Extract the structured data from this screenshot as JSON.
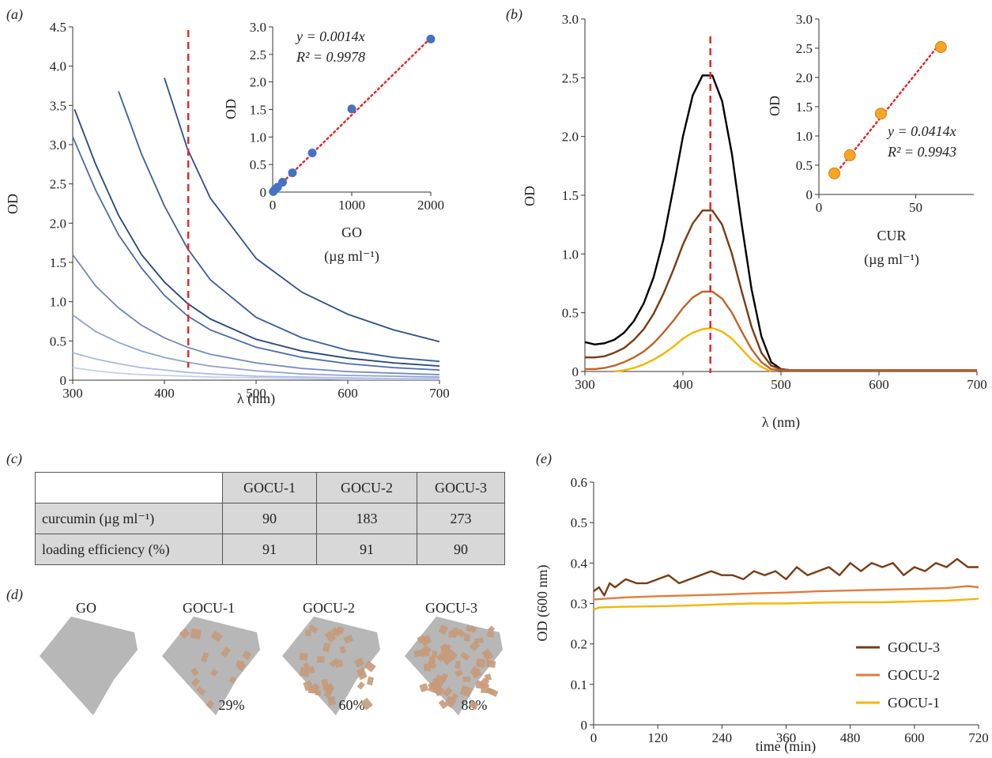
{
  "panels": {
    "a": "(a)",
    "b": "(b)",
    "c": "(c)",
    "d": "(d)",
    "e": "(e)"
  },
  "colors": {
    "red": "#e8282a",
    "blue_dots": "#4472c4",
    "orange_dots": "#f5a623",
    "black": "#000000",
    "dark_brown": "#7b3b13",
    "brown": "#b5521f",
    "orange": "#e37b3a",
    "yellow": "#f7b500",
    "gray_flake": "#b7b7b7",
    "cur_patch": "#c79a7a"
  },
  "chart_data": [
    {
      "id": "a_main",
      "type": "line",
      "xlabel": "λ (nm)",
      "ylabel": "OD",
      "xlim": [
        300,
        700
      ],
      "ylim": [
        0,
        4.5
      ],
      "xticks": [
        300,
        400,
        500,
        600,
        700
      ],
      "yticks": [
        "0",
        "0.5",
        "1.0",
        "1.5",
        "2.0",
        "2.5",
        "3.0",
        "3.5",
        "4.0",
        "4.5"
      ],
      "marker_line_x": 426,
      "series": [
        {
          "color": "#2b4f8e",
          "x": [
            400,
            425,
            450,
            500,
            550,
            600,
            650,
            700
          ],
          "y": [
            3.85,
            2.95,
            2.32,
            1.55,
            1.12,
            0.84,
            0.64,
            0.49
          ]
        },
        {
          "color": "#3a5fa0",
          "x": [
            350,
            375,
            400,
            425,
            450,
            500,
            550,
            600,
            650,
            700
          ],
          "y": [
            3.68,
            2.88,
            2.22,
            1.68,
            1.28,
            0.8,
            0.54,
            0.38,
            0.29,
            0.24
          ]
        },
        {
          "color": "#26457f",
          "x": [
            302,
            325,
            350,
            375,
            400,
            425,
            450,
            500,
            550,
            600,
            650,
            700
          ],
          "y": [
            3.45,
            2.75,
            2.1,
            1.6,
            1.25,
            0.98,
            0.78,
            0.52,
            0.37,
            0.28,
            0.22,
            0.18
          ]
        },
        {
          "color": "#4a6cb0",
          "x": [
            300,
            325,
            350,
            375,
            400,
            425,
            450,
            500,
            550,
            600,
            650,
            700
          ],
          "y": [
            3.1,
            2.42,
            1.85,
            1.43,
            1.08,
            0.82,
            0.64,
            0.42,
            0.29,
            0.21,
            0.16,
            0.13
          ]
        },
        {
          "color": "#6e89c2",
          "x": [
            300,
            325,
            350,
            375,
            400,
            425,
            450,
            500,
            550,
            600,
            650,
            700
          ],
          "y": [
            1.6,
            1.2,
            0.92,
            0.7,
            0.54,
            0.42,
            0.33,
            0.22,
            0.15,
            0.11,
            0.09,
            0.07
          ]
        },
        {
          "color": "#8ea3d1",
          "x": [
            300,
            325,
            350,
            375,
            400,
            425,
            450,
            500,
            550,
            600,
            650,
            700
          ],
          "y": [
            0.83,
            0.62,
            0.48,
            0.37,
            0.29,
            0.23,
            0.18,
            0.12,
            0.08,
            0.06,
            0.05,
            0.04
          ]
        },
        {
          "color": "#a9bbe0",
          "x": [
            300,
            325,
            350,
            375,
            400,
            425,
            450,
            500,
            550,
            600,
            650,
            700
          ],
          "y": [
            0.35,
            0.27,
            0.21,
            0.16,
            0.13,
            0.1,
            0.08,
            0.05,
            0.04,
            0.03,
            0.02,
            0.02
          ]
        },
        {
          "color": "#c4d0ea",
          "x": [
            300,
            325,
            350,
            375,
            400,
            425,
            450,
            500,
            550,
            600,
            650,
            700
          ],
          "y": [
            0.16,
            0.12,
            0.09,
            0.07,
            0.06,
            0.05,
            0.04,
            0.03,
            0.02,
            0.01,
            0.01,
            0.01
          ]
        }
      ]
    },
    {
      "id": "a_inset",
      "type": "scatter",
      "xlabel": "GO",
      "xunit": "(µg ml⁻¹)",
      "ylabel": "OD",
      "xlim": [
        0,
        2000
      ],
      "ylim": [
        0,
        3.0
      ],
      "xticks": [
        0,
        1000,
        2000
      ],
      "yticks": [
        "0",
        "0.5",
        "1.0",
        "1.5",
        "2.0",
        "2.5",
        "3.0"
      ],
      "equation": "y = 0.0014x",
      "r2": "R² = 0.9978",
      "x": [
        8,
        31,
        62,
        125,
        250,
        500,
        1000,
        2000
      ],
      "y": [
        0.01,
        0.05,
        0.09,
        0.18,
        0.35,
        0.71,
        1.51,
        2.78
      ],
      "fit": [
        [
          0,
          0
        ],
        [
          2000,
          2.8
        ]
      ]
    },
    {
      "id": "b_main",
      "type": "line",
      "xlabel": "λ (nm)",
      "ylabel": "OD",
      "xlim": [
        300,
        700
      ],
      "ylim": [
        0,
        3.0
      ],
      "xticks": [
        300,
        400,
        500,
        600,
        700
      ],
      "yticks": [
        "0",
        "0.5",
        "1.0",
        "1.5",
        "2.0",
        "2.5",
        "3.0"
      ],
      "marker_line_x": 428,
      "series": [
        {
          "color": "#000000",
          "x": [
            300,
            310,
            320,
            330,
            340,
            350,
            360,
            370,
            380,
            390,
            400,
            410,
            420,
            430,
            440,
            450,
            460,
            470,
            480,
            490,
            500,
            510,
            550,
            600,
            650,
            700
          ],
          "y": [
            0.25,
            0.23,
            0.24,
            0.27,
            0.33,
            0.43,
            0.58,
            0.8,
            1.12,
            1.55,
            2.0,
            2.35,
            2.52,
            2.52,
            2.3,
            1.85,
            1.25,
            0.7,
            0.3,
            0.08,
            0.02,
            0.01,
            0.01,
            0.01,
            0.01,
            0.01
          ]
        },
        {
          "color": "#7b3b13",
          "x": [
            300,
            310,
            320,
            330,
            340,
            350,
            360,
            370,
            380,
            390,
            400,
            410,
            420,
            430,
            440,
            450,
            460,
            470,
            480,
            490,
            500,
            510,
            550,
            600,
            650,
            700
          ],
          "y": [
            0.12,
            0.12,
            0.13,
            0.16,
            0.2,
            0.27,
            0.36,
            0.49,
            0.66,
            0.86,
            1.08,
            1.26,
            1.37,
            1.37,
            1.25,
            1.0,
            0.68,
            0.38,
            0.16,
            0.05,
            0.02,
            0.01,
            0.01,
            0.01,
            0.01,
            0.01
          ]
        },
        {
          "color": "#c0632a",
          "x": [
            300,
            310,
            320,
            330,
            340,
            350,
            360,
            370,
            380,
            390,
            400,
            410,
            420,
            430,
            440,
            450,
            460,
            470,
            480,
            490,
            500,
            510,
            550,
            600,
            650,
            700
          ],
          "y": [
            0.02,
            0.02,
            0.03,
            0.05,
            0.08,
            0.12,
            0.17,
            0.24,
            0.33,
            0.43,
            0.54,
            0.63,
            0.68,
            0.68,
            0.62,
            0.5,
            0.34,
            0.19,
            0.08,
            0.02,
            0.01,
            0.01,
            0.01,
            0.01,
            0.01,
            0.01
          ]
        },
        {
          "color": "#f7b500",
          "x": [
            330,
            340,
            350,
            360,
            370,
            380,
            390,
            400,
            410,
            420,
            430,
            440,
            450,
            460,
            470,
            480,
            490
          ],
          "y": [
            0.0,
            0.01,
            0.03,
            0.06,
            0.1,
            0.15,
            0.21,
            0.28,
            0.33,
            0.36,
            0.37,
            0.34,
            0.28,
            0.19,
            0.1,
            0.04,
            0.0
          ]
        }
      ]
    },
    {
      "id": "b_inset",
      "type": "scatter",
      "xlabel": "CUR",
      "xunit": "(µg ml⁻¹)",
      "ylabel": "OD",
      "xlim": [
        0,
        80
      ],
      "ylim": [
        0,
        3.0
      ],
      "xticks": [
        0,
        50
      ],
      "yticks": [
        "0",
        "0.5",
        "1.0",
        "1.5",
        "2.0",
        "2.5",
        "3.0"
      ],
      "equation": "y = 0.0414x",
      "r2": "R² = 0.9943",
      "x": [
        8,
        16,
        32,
        63
      ],
      "y": [
        0.36,
        0.67,
        1.38,
        2.52
      ],
      "fit": [
        [
          8,
          0.33
        ],
        [
          63,
          2.6
        ]
      ]
    },
    {
      "id": "e_main",
      "type": "line",
      "xlabel": "time (min)",
      "ylabel": "OD (600 nm)",
      "xlim": [
        0,
        720
      ],
      "ylim": [
        0,
        0.6
      ],
      "xticks": [
        0,
        120,
        240,
        360,
        480,
        600,
        720
      ],
      "yticks": [
        "0",
        "0.1",
        "0.2",
        "0.3",
        "0.4",
        "0.5",
        "0.6"
      ],
      "legend_position": "bottom-right",
      "series": [
        {
          "name": "GOCU-3",
          "color": "#7b3b13",
          "x": [
            0,
            10,
            20,
            30,
            40,
            60,
            80,
            100,
            120,
            140,
            160,
            180,
            200,
            220,
            240,
            260,
            280,
            300,
            320,
            340,
            360,
            380,
            400,
            420,
            440,
            460,
            480,
            500,
            520,
            540,
            560,
            580,
            600,
            620,
            640,
            660,
            680,
            700,
            720
          ],
          "y": [
            0.33,
            0.34,
            0.32,
            0.35,
            0.34,
            0.36,
            0.35,
            0.35,
            0.36,
            0.37,
            0.35,
            0.36,
            0.37,
            0.38,
            0.37,
            0.37,
            0.36,
            0.38,
            0.37,
            0.38,
            0.36,
            0.39,
            0.37,
            0.38,
            0.39,
            0.37,
            0.4,
            0.38,
            0.4,
            0.39,
            0.4,
            0.37,
            0.39,
            0.38,
            0.4,
            0.39,
            0.41,
            0.39,
            0.39
          ]
        },
        {
          "name": "GOCU-2",
          "color": "#e37b3a",
          "x": [
            0,
            60,
            120,
            180,
            240,
            300,
            360,
            420,
            480,
            540,
            600,
            660,
            700,
            720
          ],
          "y": [
            0.31,
            0.315,
            0.318,
            0.32,
            0.322,
            0.325,
            0.327,
            0.33,
            0.332,
            0.334,
            0.336,
            0.338,
            0.343,
            0.34
          ]
        },
        {
          "name": "GOCU-1",
          "color": "#f7b500",
          "x": [
            0,
            10,
            60,
            120,
            180,
            240,
            300,
            360,
            420,
            480,
            540,
            600,
            660,
            700,
            720
          ],
          "y": [
            0.285,
            0.29,
            0.292,
            0.293,
            0.295,
            0.298,
            0.3,
            0.3,
            0.302,
            0.303,
            0.303,
            0.305,
            0.307,
            0.31,
            0.312
          ]
        }
      ]
    },
    {
      "id": "c_table",
      "type": "table",
      "columns": [
        "",
        "GOCU-1",
        "GOCU-2",
        "GOCU-3"
      ],
      "rows": [
        {
          "label": "curcumin (µg ml⁻¹)",
          "values": [
            "90",
            "183",
            "273"
          ]
        },
        {
          "label": "loading efficiency (%)",
          "values": [
            "91",
            "91",
            "90"
          ]
        }
      ]
    }
  ],
  "flakes": [
    {
      "label": "GO",
      "pct": "",
      "density": 0
    },
    {
      "label": "GOCU-1",
      "pct": "29%",
      "density": 14
    },
    {
      "label": "GOCU-2",
      "pct": "60%",
      "density": 32
    },
    {
      "label": "GOCU-3",
      "pct": "88%",
      "density": 58
    }
  ]
}
